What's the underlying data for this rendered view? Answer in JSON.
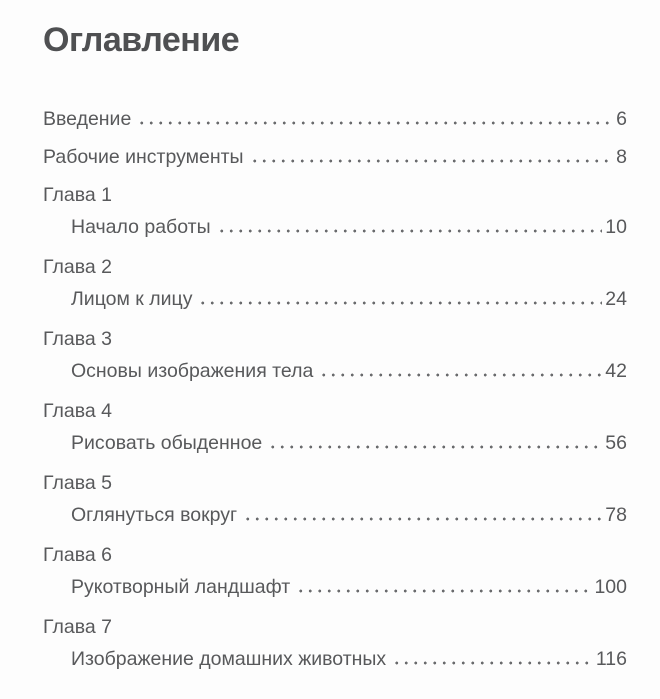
{
  "page": {
    "title": "Оглавление"
  },
  "colors": {
    "text": "#58595b",
    "title": "#4f5052",
    "dots": "#6a6b6d",
    "background": "#fdfdfd"
  },
  "toc": {
    "entries": [
      {
        "type": "simple",
        "chapter": "",
        "label": "Введение",
        "page": "6"
      },
      {
        "type": "simple",
        "chapter": "",
        "label": "Рабочие инструменты",
        "page": "8"
      },
      {
        "type": "chapter",
        "chapter": "Глава 1",
        "label": "Начало работы",
        "page": "10"
      },
      {
        "type": "chapter",
        "chapter": "Глава 2",
        "label": "Лицом к лицу",
        "page": "24"
      },
      {
        "type": "chapter",
        "chapter": "Глава 3",
        "label": "Основы изображения тела",
        "page": "42"
      },
      {
        "type": "chapter",
        "chapter": "Глава 4",
        "label": "Рисовать обыденное",
        "page": "56"
      },
      {
        "type": "chapter",
        "chapter": "Глава 5",
        "label": "Оглянуться вокруг",
        "page": "78"
      },
      {
        "type": "chapter",
        "chapter": "Глава 6",
        "label": "Рукотворный ландшафт",
        "page": "100"
      },
      {
        "type": "chapter",
        "chapter": "Глава 7",
        "label": "Изображение домашних животных",
        "page": "116"
      }
    ]
  }
}
